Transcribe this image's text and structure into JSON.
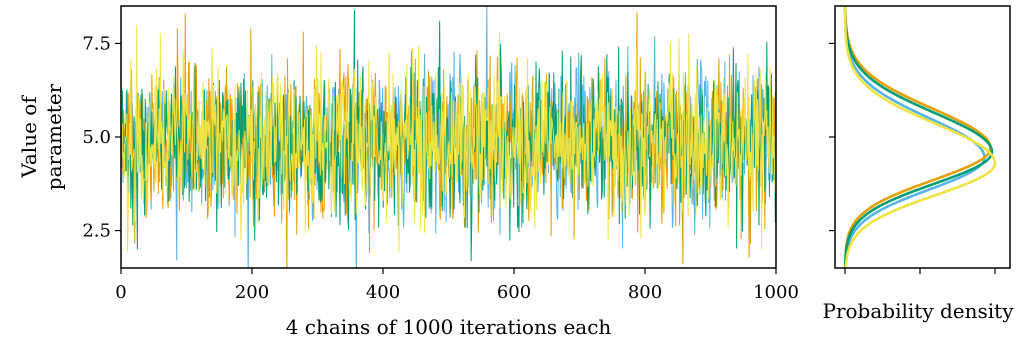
{
  "chart_data": [
    {
      "type": "line",
      "panel": "trace",
      "xlabel": "4 chains of 1000 iterations each",
      "ylabel_line1": "Value of",
      "ylabel_line2": "parameter",
      "xlim": [
        0,
        1000
      ],
      "ylim": [
        1.5,
        8.5
      ],
      "xticks": [
        "0",
        "200",
        "400",
        "600",
        "800",
        "1000"
      ],
      "yticks": [
        "2.5",
        "5.0",
        "7.5"
      ],
      "grid": false,
      "colors": [
        "#56b4e9",
        "#e69f00",
        "#009e73",
        "#f0e442"
      ],
      "iterations": 1000,
      "chains": 4,
      "approx_mean": 4.9,
      "approx_sd": 1.0,
      "extremes": [
        {
          "iteration": 558,
          "value": 8.5
        },
        {
          "iteration": 98,
          "value": 8.3
        },
        {
          "iteration": 356,
          "value": 8.4
        },
        {
          "iteration": 24,
          "value": 8.0
        },
        {
          "iteration": 85,
          "value": 1.7
        },
        {
          "iteration": 857,
          "value": 1.6
        },
        {
          "iteration": 25,
          "value": 2.0
        }
      ]
    },
    {
      "type": "line",
      "panel": "density",
      "xlabel": "Probability density",
      "ylim": [
        1.5,
        8.5
      ],
      "colors": [
        "#56b4e9",
        "#e69f00",
        "#009e73",
        "#f0e442"
      ],
      "peak_locations": [
        4.45,
        4.7,
        4.6,
        4.3
      ],
      "peak_heights": [
        0.93,
        0.97,
        0.98,
        1.0
      ]
    }
  ]
}
